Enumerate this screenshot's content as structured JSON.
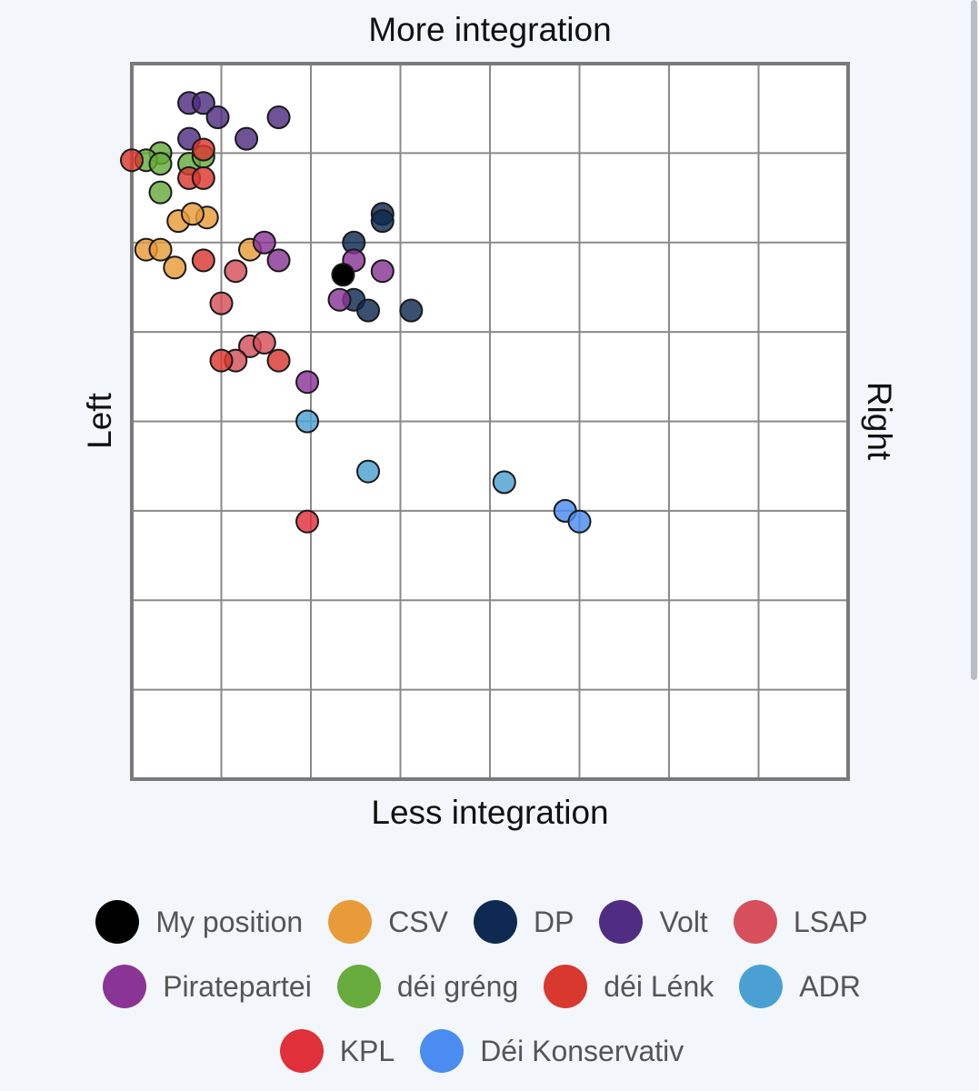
{
  "chart_data": {
    "type": "scatter",
    "title": "",
    "labels": {
      "top": "More integration",
      "bottom": "Less integration",
      "left": "Left",
      "right": "Right"
    },
    "xlim": [
      -1,
      1
    ],
    "ylim": [
      -1,
      1
    ],
    "grid": true,
    "grid_divisions": 8,
    "legend_position": "bottom",
    "series": [
      {
        "name": "My position",
        "color": "#000000",
        "points": [
          [
            -0.41,
            0.41
          ]
        ]
      },
      {
        "name": "CSV",
        "color": "#e89c39",
        "points": [
          [
            -0.87,
            0.56
          ],
          [
            -0.96,
            0.48
          ],
          [
            -0.92,
            0.48
          ],
          [
            -0.88,
            0.43
          ],
          [
            -0.67,
            0.48
          ],
          [
            -0.79,
            0.57
          ],
          [
            -0.83,
            0.58
          ]
        ]
      },
      {
        "name": "DP",
        "color": "#0e2a52",
        "points": [
          [
            -0.3,
            0.58
          ],
          [
            -0.3,
            0.56
          ],
          [
            -0.38,
            0.5
          ],
          [
            -0.38,
            0.34
          ],
          [
            -0.34,
            0.31
          ],
          [
            -0.22,
            0.31
          ]
        ]
      },
      {
        "name": "Volt",
        "color": "#4f2d83",
        "points": [
          [
            -0.84,
            0.89
          ],
          [
            -0.8,
            0.89
          ],
          [
            -0.76,
            0.85
          ],
          [
            -0.59,
            0.85
          ],
          [
            -0.84,
            0.79
          ],
          [
            -0.68,
            0.79
          ]
        ]
      },
      {
        "name": "LSAP",
        "color": "#d64f5b",
        "points": [
          [
            -0.71,
            0.42
          ],
          [
            -0.75,
            0.33
          ],
          [
            -0.67,
            0.21
          ],
          [
            -0.63,
            0.22
          ],
          [
            -0.71,
            0.17
          ]
        ]
      },
      {
        "name": "Piratepartei",
        "color": "#8a3596",
        "points": [
          [
            -0.63,
            0.5
          ],
          [
            -0.59,
            0.45
          ],
          [
            -0.38,
            0.45
          ],
          [
            -0.3,
            0.42
          ],
          [
            -0.42,
            0.34
          ],
          [
            -0.51,
            0.11
          ]
        ]
      },
      {
        "name": "déi gréng",
        "color": "#66ab3b",
        "points": [
          [
            -0.92,
            0.75
          ],
          [
            -0.96,
            0.73
          ],
          [
            -0.92,
            0.72
          ],
          [
            -0.84,
            0.72
          ],
          [
            -0.8,
            0.74
          ],
          [
            -0.92,
            0.64
          ]
        ]
      },
      {
        "name": "déi Lénk",
        "color": "#d9382f",
        "points": [
          [
            -1.0,
            0.73
          ],
          [
            -0.8,
            0.76
          ],
          [
            -0.84,
            0.68
          ],
          [
            -0.8,
            0.68
          ],
          [
            -0.8,
            0.45
          ],
          [
            -0.59,
            0.17
          ],
          [
            -0.75,
            0.17
          ]
        ]
      },
      {
        "name": "ADR",
        "color": "#4aa0d2",
        "points": [
          [
            -0.51,
            0.0
          ],
          [
            -0.34,
            -0.14
          ],
          [
            0.04,
            -0.17
          ]
        ]
      },
      {
        "name": "KPL",
        "color": "#e0303a",
        "points": [
          [
            -0.51,
            -0.28
          ]
        ]
      },
      {
        "name": "Déi Konservativ",
        "color": "#4a8cf0",
        "points": [
          [
            0.21,
            -0.25
          ],
          [
            0.25,
            -0.28
          ]
        ]
      }
    ]
  },
  "legend": {
    "rows": [
      [
        {
          "label": "My position",
          "color": "#000000"
        },
        {
          "label": "CSV",
          "color": "#e89c39"
        },
        {
          "label": "DP",
          "color": "#0e2a52"
        },
        {
          "label": "Volt",
          "color": "#4f2d83"
        },
        {
          "label": "LSAP",
          "color": "#d64f5b"
        }
      ],
      [
        {
          "label": "Piratepartei",
          "color": "#8a3596"
        },
        {
          "label": "déi gréng",
          "color": "#66ab3b"
        },
        {
          "label": "déi Lénk",
          "color": "#d9382f"
        },
        {
          "label": "ADR",
          "color": "#4aa0d2"
        }
      ],
      [
        {
          "label": "KPL",
          "color": "#e0303a"
        },
        {
          "label": "Déi Konservativ",
          "color": "#4a8cf0"
        }
      ]
    ]
  }
}
